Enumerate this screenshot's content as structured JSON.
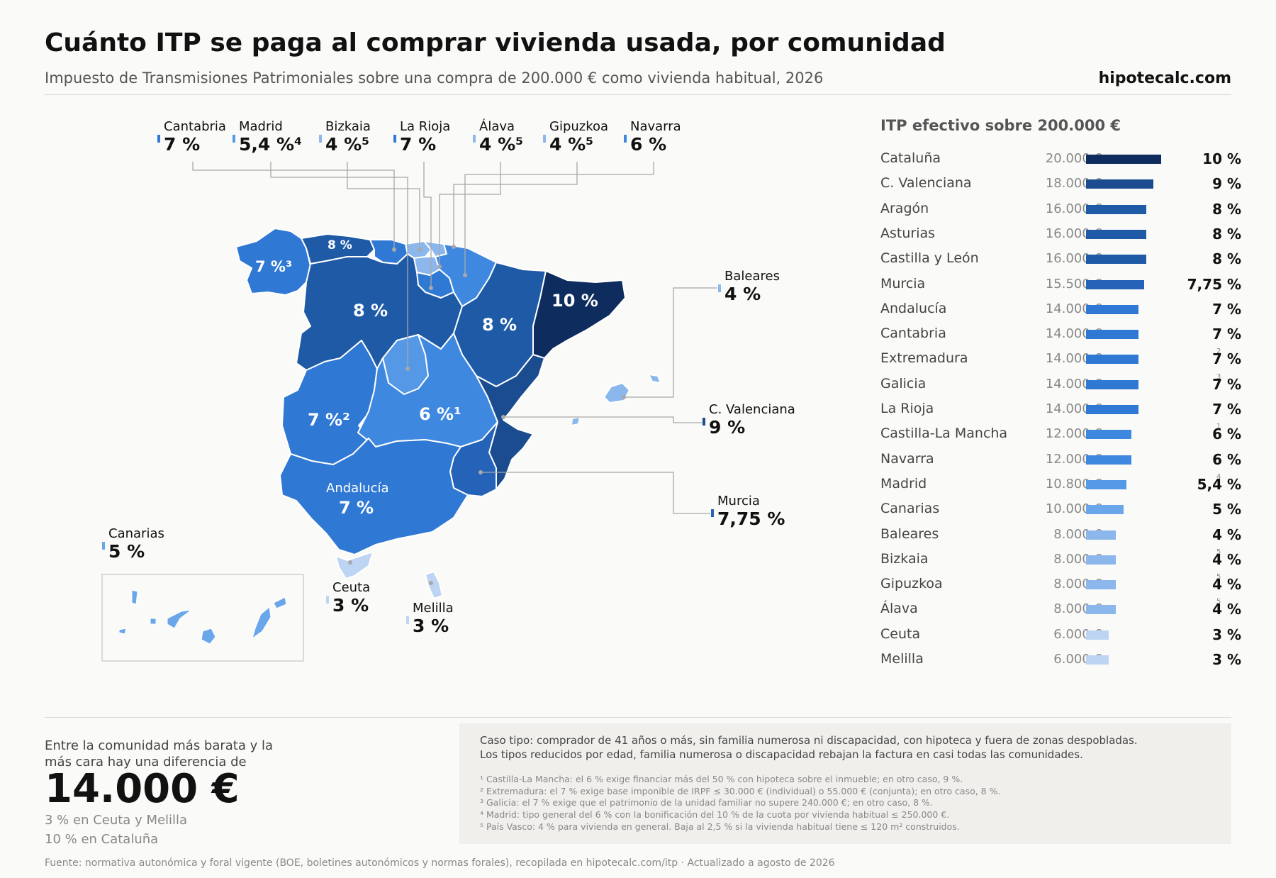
{
  "header": {
    "title": "Cuánto ITP se paga al comprar vivienda usada, por comunidad",
    "subtitle": "Impuesto de Transmisiones Patrimoniales sobre una compra de 200.000 € como vivienda habitual, 2026",
    "brand": "hipotecalc.com"
  },
  "colors": {
    "r10": "#0e2d5e",
    "r9": "#1a4c8f",
    "r8": "#1f5aa6",
    "r775": "#2563b8",
    "r7": "#2f78d3",
    "r6": "#3f88e0",
    "r54": "#5598e6",
    "r5": "#6aa6ea",
    "r4": "#8bb7ec",
    "r3": "#bdd4f3"
  },
  "map": {
    "labels": {
      "galicia": "7 %³",
      "asturias": "8 %",
      "castilla_leon": "8 %",
      "aragon": "8 %",
      "cataluna": "10 %",
      "castilla_la_mancha": "6 %¹",
      "extremadura": "7 %²",
      "andalucia_name": "Andalucía",
      "andalucia_rate": "7 %"
    },
    "callouts": [
      {
        "id": "cantabria",
        "name": "Cantabria",
        "rate": "7 %"
      },
      {
        "id": "madrid",
        "name": "Madrid",
        "rate": "5,4 %⁴"
      },
      {
        "id": "bizkaia",
        "name": "Bizkaia",
        "rate": "4 %⁵"
      },
      {
        "id": "la_rioja",
        "name": "La Rioja",
        "rate": "7 %"
      },
      {
        "id": "alava",
        "name": "Álava",
        "rate": "4 %⁵"
      },
      {
        "id": "gipuzkoa",
        "name": "Gipuzkoa",
        "rate": "4 %⁵"
      },
      {
        "id": "navarra",
        "name": "Navarra",
        "rate": "6 %"
      },
      {
        "id": "baleares",
        "name": "Baleares",
        "rate": "4 %"
      },
      {
        "id": "valenciana",
        "name": "C. Valenciana",
        "rate": "9 %"
      },
      {
        "id": "murcia",
        "name": "Murcia",
        "rate": "7,75 %"
      },
      {
        "id": "canarias",
        "name": "Canarias",
        "rate": "5 %"
      },
      {
        "id": "ceuta",
        "name": "Ceuta",
        "rate": "3 %"
      },
      {
        "id": "melilla",
        "name": "Melilla",
        "rate": "3 %"
      }
    ]
  },
  "ranking": {
    "title": "ITP efectivo sobre 200.000 €",
    "rows": [
      {
        "name": "Cataluña",
        "amount": "20.000 €",
        "rate": "10 %",
        "value": 10,
        "note": ""
      },
      {
        "name": "C. Valenciana",
        "amount": "18.000 €",
        "rate": "9 %",
        "value": 9,
        "note": ""
      },
      {
        "name": "Aragón",
        "amount": "16.000 €",
        "rate": "8 %",
        "value": 8,
        "note": ""
      },
      {
        "name": "Asturias",
        "amount": "16.000 €",
        "rate": "8 %",
        "value": 8,
        "note": ""
      },
      {
        "name": "Castilla y León",
        "amount": "16.000 €",
        "rate": "8 %",
        "value": 8,
        "note": ""
      },
      {
        "name": "Murcia",
        "amount": "15.500 €",
        "rate": "7,75 %",
        "value": 7.75,
        "note": ""
      },
      {
        "name": "Andalucía",
        "amount": "14.000 €",
        "rate": "7 %",
        "value": 7,
        "note": ""
      },
      {
        "name": "Cantabria",
        "amount": "14.000 €",
        "rate": "7 %",
        "value": 7,
        "note": ""
      },
      {
        "name": "Extremadura",
        "amount": "14.000 €",
        "rate": "7 %",
        "value": 7,
        "note": "2"
      },
      {
        "name": "Galicia",
        "amount": "14.000 €",
        "rate": "7 %",
        "value": 7,
        "note": "3"
      },
      {
        "name": "La Rioja",
        "amount": "14.000 €",
        "rate": "7 %",
        "value": 7,
        "note": ""
      },
      {
        "name": "Castilla-La Mancha",
        "amount": "12.000 €",
        "rate": "6 %",
        "value": 6,
        "note": "1"
      },
      {
        "name": "Navarra",
        "amount": "12.000 €",
        "rate": "6 %",
        "value": 6,
        "note": ""
      },
      {
        "name": "Madrid",
        "amount": "10.800 €",
        "rate": "5,4 %",
        "value": 5.4,
        "note": "4"
      },
      {
        "name": "Canarias",
        "amount": "10.000 €",
        "rate": "5 %",
        "value": 5,
        "note": ""
      },
      {
        "name": "Baleares",
        "amount": "8.000 €",
        "rate": "4 %",
        "value": 4,
        "note": ""
      },
      {
        "name": "Bizkaia",
        "amount": "8.000 €",
        "rate": "4 %",
        "value": 4,
        "note": "5"
      },
      {
        "name": "Gipuzkoa",
        "amount": "8.000 €",
        "rate": "4 %",
        "value": 4,
        "note": "5"
      },
      {
        "name": "Álava",
        "amount": "8.000 €",
        "rate": "4 %",
        "value": 4,
        "note": "5"
      },
      {
        "name": "Ceuta",
        "amount": "6.000 €",
        "rate": "3 %",
        "value": 3,
        "note": ""
      },
      {
        "name": "Melilla",
        "amount": "6.000 €",
        "rate": "3 %",
        "value": 3,
        "note": ""
      }
    ]
  },
  "difference": {
    "intro": "Entre la comunidad más barata y la más cara hay una diferencia de",
    "amount": "14.000 €",
    "low": "3 % en Ceuta y Melilla",
    "high": "10 % en Cataluña"
  },
  "notes": {
    "case_line1": "Caso tipo: comprador de 41 años o más, sin familia numerosa ni discapacidad, con hipoteca y fuera de zonas despobladas.",
    "case_line2": "Los tipos reducidos por edad, familia numerosa o discapacidad rebajan la factura en casi todas las comunidades.",
    "footnotes": [
      "¹ Castilla-La Mancha: el 6 % exige financiar más del 50 % con hipoteca sobre el inmueble; en otro caso, 9 %.",
      "² Extremadura: el 7 % exige base imponible de IRPF ≤ 30.000 € (individual) o 55.000 € (conjunta); en otro caso, 8 %.",
      "³ Galicia: el 7 % exige que el patrimonio de la unidad familiar no supere 240.000 €; en otro caso, 8 %.",
      "⁴ Madrid: tipo general del 6 % con la bonificación del 10 % de la cuota por vivienda habitual ≤ 250.000 €.",
      "⁵ País Vasco: 4 % para vivienda en general. Baja al 2,5 % si la vivienda habitual tiene ≤ 120 m² construidos."
    ]
  },
  "source": "Fuente: normativa autonómica y foral vigente (BOE, boletines autonómicos y normas forales), recopilada en hipotecalc.com/itp · Actualizado a agosto de 2026"
}
